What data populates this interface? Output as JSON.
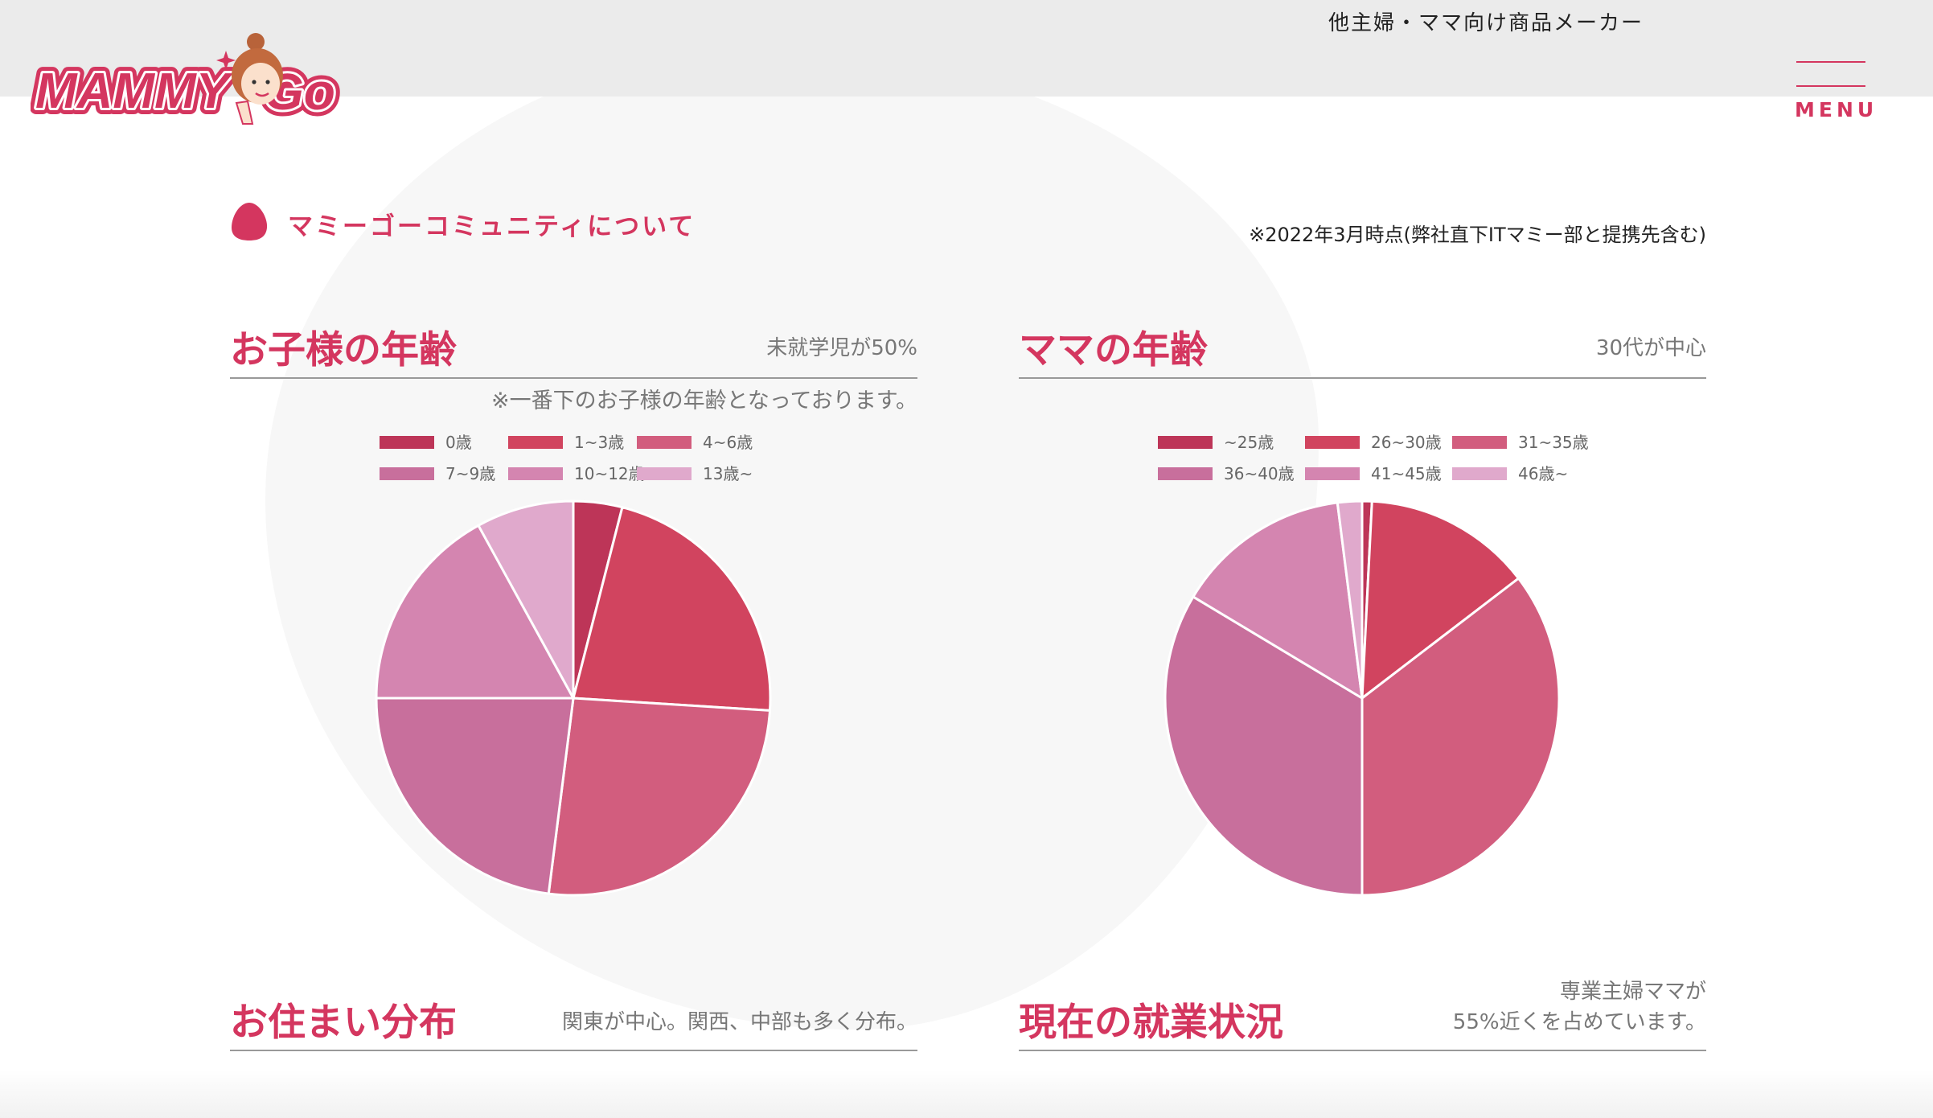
{
  "header": {
    "tagline": "他主婦・ママ向け商品メーカー",
    "logo_text": "MAMMY GO",
    "menu_label": "MENU"
  },
  "section": {
    "title": "マミーゴーコミュニティについて",
    "as_of": "※2022年3月時点(弊社直下ITマミー部と提携先含む)"
  },
  "panels": {
    "children_age": {
      "title": "お子様の年齢",
      "subtitle": "未就学児が50%",
      "note": "※一番下のお子様の年齢となっております。"
    },
    "mama_age": {
      "title": "ママの年齢",
      "subtitle": "30代が中心"
    },
    "residence": {
      "title": "お住まい分布",
      "subtitle": "関東が中心。関西、中部も多く分布。"
    },
    "employment": {
      "title": "現在の就業状況",
      "subtitle_line1": "専業主婦ママが",
      "subtitle_line2": "55%近くを占めています。"
    }
  },
  "colors": {
    "accent": "#d4365f",
    "palette": [
      "#bd3558",
      "#d1445f",
      "#d25d7e",
      "#c86f9c",
      "#d485b0",
      "#e0a9cc"
    ]
  },
  "chart_data": [
    {
      "type": "pie",
      "categories": [
        "0歳",
        "1~3歳",
        "4~6歳",
        "7~9歳",
        "10~12歳",
        "13歳~"
      ],
      "values": [
        4,
        22,
        26,
        23,
        17,
        8
      ],
      "legend_position": "top"
    },
    {
      "type": "pie",
      "categories": [
        "~25歳",
        "26~30歳",
        "31~35歳",
        "36~40歳",
        "41~45歳",
        "46歳~"
      ],
      "values": [
        0.8,
        13.8,
        35.4,
        33.6,
        14.4,
        2
      ],
      "legend_position": "top"
    }
  ]
}
